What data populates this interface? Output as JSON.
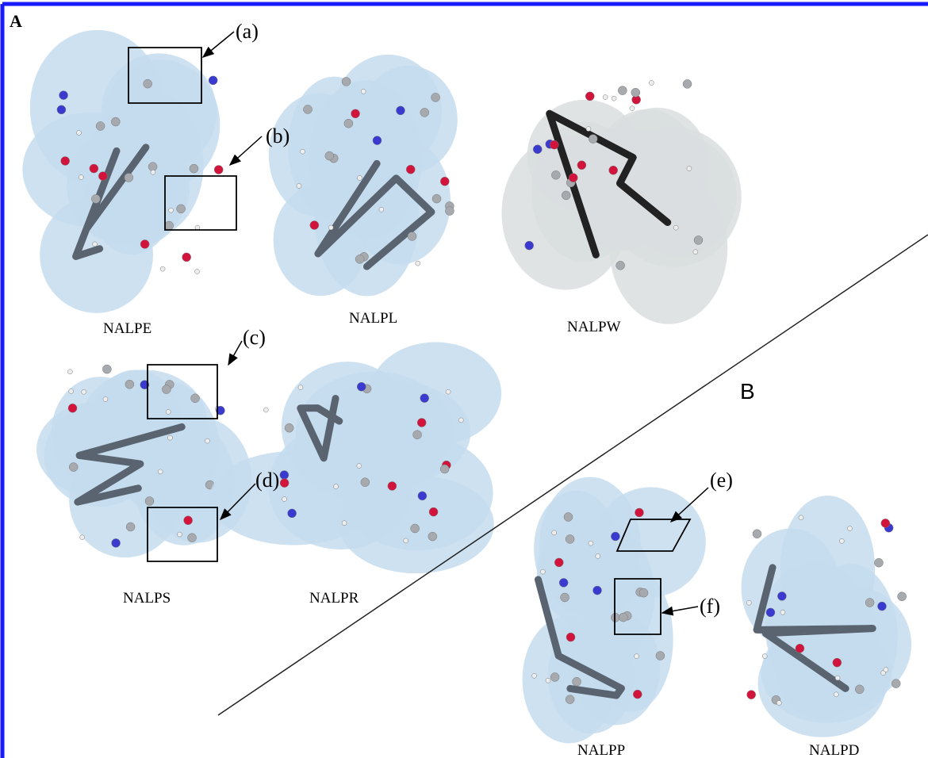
{
  "panels": {
    "a_label": "A",
    "b_label": "B"
  },
  "molecules": [
    {
      "name": "NALPE"
    },
    {
      "name": "NALPL"
    },
    {
      "name": "NALPW"
    },
    {
      "name": "NALPS"
    },
    {
      "name": "NALPR"
    },
    {
      "name": "NALPP"
    },
    {
      "name": "NALPD"
    }
  ],
  "callouts": [
    {
      "label": "(a)"
    },
    {
      "label": "(b)"
    },
    {
      "label": "(c)"
    },
    {
      "label": "(d)"
    },
    {
      "label": "(e)"
    },
    {
      "label": "(f)"
    }
  ]
}
